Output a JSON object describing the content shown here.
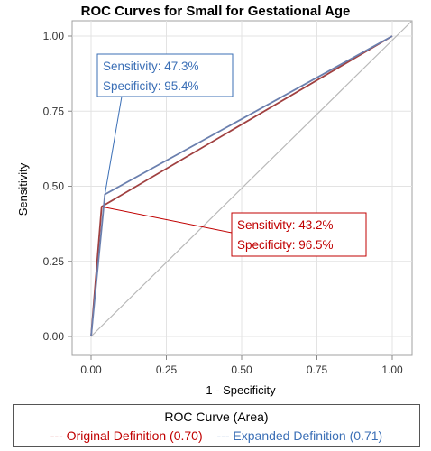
{
  "chart_data": {
    "type": "line",
    "title": "ROC Curves for Small for Gestational Age",
    "xlabel": "1 - Specificity",
    "ylabel": "Sensitivity",
    "xlim": [
      0,
      1
    ],
    "ylim": [
      0,
      1
    ],
    "x_ticks": [
      "0.00",
      "0.25",
      "0.50",
      "0.75",
      "1.00"
    ],
    "y_ticks": [
      "0.00",
      "0.25",
      "0.50",
      "0.75",
      "1.00"
    ],
    "grid": true,
    "series": [
      {
        "name": "Original Definition (0.70)",
        "color": "#a04040",
        "x": [
          0,
          0.035,
          1
        ],
        "y": [
          0,
          0.432,
          1
        ]
      },
      {
        "name": "Expanded Definition (0.71)",
        "color": "#6a7fae",
        "x": [
          0,
          0.046,
          1
        ],
        "y": [
          0,
          0.473,
          1
        ]
      }
    ],
    "reference_line": {
      "x": [
        0,
        1
      ],
      "y": [
        0,
        1
      ],
      "color": "#b8b8b8"
    },
    "annotations": [
      {
        "lines": [
          "Sensitivity: 47.3%",
          "Specificity: 95.4%"
        ],
        "color": "#3b6fb6",
        "point": [
          0.046,
          0.473
        ]
      },
      {
        "lines": [
          "Sensitivity: 43.2%",
          "Specificity: 96.5%"
        ],
        "color": "#c00000",
        "point": [
          0.035,
          0.432
        ]
      }
    ],
    "legend": {
      "title": "ROC Curve (Area)",
      "placement": "bottom",
      "items": [
        {
          "label": "--- Original Definition (0.70)",
          "color": "#c00000"
        },
        {
          "label": "--- Expanded Definition (0.71)",
          "color": "#3b6fb6"
        }
      ]
    }
  }
}
